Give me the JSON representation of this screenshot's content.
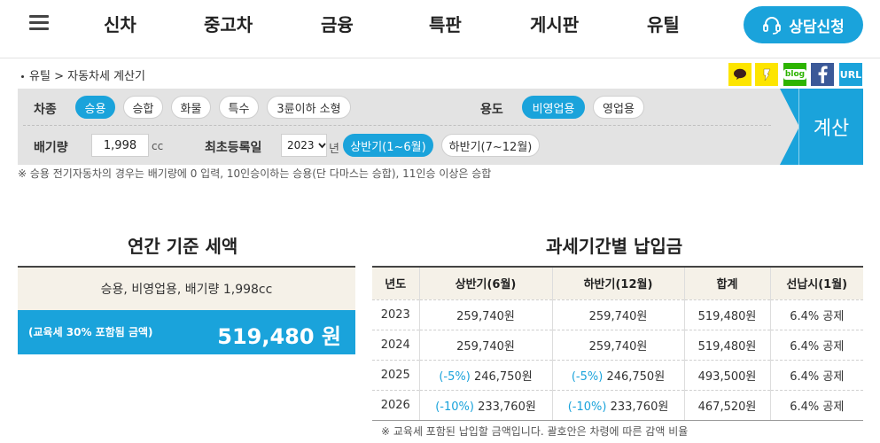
{
  "nav": {
    "items": [
      "신차",
      "중고차",
      "금융",
      "특판",
      "게시판",
      "유틸"
    ],
    "consult_label": "상담신청"
  },
  "breadcrumb": {
    "home": "유틸",
    "sep": ">",
    "current": "자동차세 계산기"
  },
  "share": {
    "url_label": "URL",
    "blog_label": "blog",
    "colors": {
      "talk": "#fde500",
      "story": "#fde500",
      "blog": "#2db400",
      "facebook": "#3b5998",
      "url": "#1aa3db"
    }
  },
  "filters": {
    "car_type_label": "차종",
    "car_types": [
      "승용",
      "승합",
      "화물",
      "특수",
      "3륜이하 소형"
    ],
    "car_type_selected": 0,
    "usage_label": "용도",
    "usages": [
      "비영업용",
      "영업용"
    ],
    "usage_selected": 0,
    "cc_label": "배기량",
    "cc_value": "1,998",
    "cc_unit": "cc",
    "reg_label": "최초등록일",
    "year_value": "2023",
    "year_unit": "년",
    "halves": [
      "상반기(1~6월)",
      "하반기(7~12월)"
    ],
    "half_selected": 0,
    "calc_label": "계산"
  },
  "note": "※ 승용 전기자동차의 경우는 배기량에 0 입력, 10인승이하는 승용(단 다마스는 승합), 11인승 이상은 승합",
  "annual": {
    "title": "연간 기준 세액",
    "summary": "승용, 비영업용, 배기량 1,998cc",
    "edu_note": "(교육세 30% 포함됨 금액)",
    "amount": "519,480 원"
  },
  "period": {
    "title": "과세기간별 납입금",
    "headers": [
      "년도",
      "상반기(6월)",
      "하반기(12월)",
      "합계",
      "선납시(1월)"
    ],
    "rows": [
      {
        "year": "2023",
        "h1_disc": "",
        "h1": "259,740원",
        "h2_disc": "",
        "h2": "259,740원",
        "total": "519,480원",
        "prepay": "6.4% 공제"
      },
      {
        "year": "2024",
        "h1_disc": "",
        "h1": "259,740원",
        "h2_disc": "",
        "h2": "259,740원",
        "total": "519,480원",
        "prepay": "6.4% 공제"
      },
      {
        "year": "2025",
        "h1_disc": "(-5%)",
        "h1": "246,750원",
        "h2_disc": "(-5%)",
        "h2": "246,750원",
        "total": "493,500원",
        "prepay": "6.4% 공제"
      },
      {
        "year": "2026",
        "h1_disc": "(-10%)",
        "h1": "233,760원",
        "h2_disc": "(-10%)",
        "h2": "233,760원",
        "total": "467,520원",
        "prepay": "6.4% 공제"
      }
    ],
    "note": "※ 교육세 포함된 납입할 금액입니다. 괄호안은 차령에 따른 감액 비율"
  }
}
